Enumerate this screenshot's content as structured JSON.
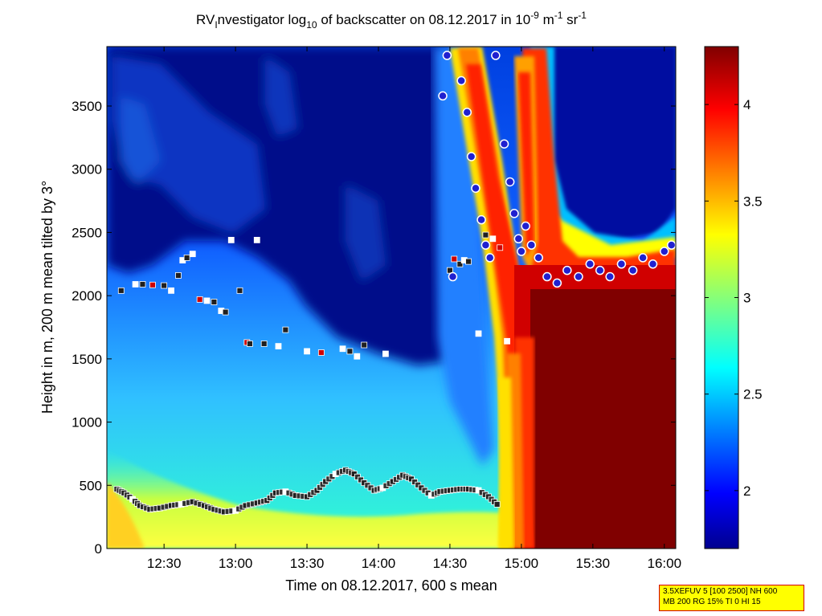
{
  "chart_data": {
    "type": "heatmap",
    "title": {
      "part1": "RV",
      "sub1": "I",
      "part2": "nvestigator log",
      "sub2": "10",
      "part3": " of backscatter on 08.12.2017 in 10",
      "sup1": "-9",
      "part4": " m",
      "sup2": "-1",
      "part5": " sr",
      "sup3": "-1"
    },
    "xlabel": "Time on 08.12.2017, 600 s mean",
    "ylabel": "Height in m, 200 m mean tilted by 3°",
    "x_range_hours": [
      12.1,
      16.08
    ],
    "x_ticks": [
      {
        "value": 12.5,
        "label": "12:30"
      },
      {
        "value": 13.0,
        "label": "13:00"
      },
      {
        "value": 13.5,
        "label": "13:30"
      },
      {
        "value": 14.0,
        "label": "14:00"
      },
      {
        "value": 14.5,
        "label": "14:30"
      },
      {
        "value": 15.0,
        "label": "15:00"
      },
      {
        "value": 15.5,
        "label": "15:30"
      },
      {
        "value": 16.0,
        "label": "16:00"
      }
    ],
    "y_range": [
      0,
      3970
    ],
    "y_ticks": [
      0,
      500,
      1000,
      1500,
      2000,
      2500,
      3000,
      3500
    ],
    "colorbar": {
      "range": [
        1.7,
        4.3
      ],
      "ticks": [
        2,
        2.5,
        3,
        3.5,
        4
      ],
      "colormap": "jet"
    },
    "mixing_layer_height": {
      "name": "lowest layer markers",
      "x": [
        12.17,
        12.22,
        12.28,
        12.33,
        12.4,
        12.47,
        12.55,
        12.62,
        12.7,
        12.78,
        12.85,
        12.92,
        13.0,
        13.07,
        13.15,
        13.22,
        13.28,
        13.35,
        13.42,
        13.5,
        13.57,
        13.63,
        13.7,
        13.77,
        13.83,
        13.9,
        13.97,
        14.03,
        14.1,
        14.17,
        14.23,
        14.3,
        14.37,
        14.43,
        14.5,
        14.57,
        14.63,
        14.7,
        14.77,
        14.83
      ],
      "y": [
        470,
        440,
        390,
        340,
        310,
        320,
        340,
        350,
        370,
        340,
        310,
        290,
        300,
        340,
        360,
        380,
        440,
        450,
        420,
        410,
        460,
        530,
        590,
        620,
        590,
        520,
        460,
        480,
        530,
        580,
        550,
        480,
        420,
        450,
        460,
        470,
        470,
        460,
        410,
        350
      ]
    },
    "layer_markers_upper": {
      "name": "upper layer markers",
      "x": [
        12.2,
        12.3,
        12.35,
        12.42,
        12.5,
        12.55,
        12.6,
        12.63,
        12.66,
        12.7,
        12.75,
        12.8,
        12.85,
        12.9,
        12.93,
        12.97,
        13.03,
        13.08,
        13.1,
        13.15,
        13.2,
        13.3,
        13.35,
        13.5,
        13.6,
        13.75,
        13.8,
        13.85,
        13.9,
        14.05,
        14.5,
        14.53,
        14.57,
        14.6,
        14.63,
        14.7,
        14.75,
        14.8,
        14.85,
        14.9
      ],
      "y": [
        2040,
        2090,
        2090,
        2085,
        2080,
        2040,
        2160,
        2280,
        2300,
        2330,
        1970,
        1960,
        1950,
        1880,
        1870,
        2440,
        2040,
        1630,
        1620,
        2440,
        1620,
        1600,
        1730,
        1560,
        1550,
        1580,
        1560,
        1520,
        1610,
        1540,
        2200,
        2290,
        2250,
        2280,
        2270,
        1700,
        2480,
        2450,
        2380,
        1640
      ]
    },
    "cloud_markers": {
      "name": "cloud markers",
      "x": [
        14.45,
        14.48,
        14.52,
        14.58,
        14.62,
        14.65,
        14.68,
        14.72,
        14.75,
        14.78,
        14.82,
        14.88,
        14.92,
        14.95,
        14.98,
        15.0,
        15.03,
        15.07,
        15.12,
        15.18,
        15.25,
        15.32,
        15.4,
        15.48,
        15.55,
        15.62,
        15.7,
        15.78,
        15.85,
        15.92,
        16.0,
        16.05
      ],
      "y": [
        3580,
        3900,
        2150,
        3700,
        3450,
        3100,
        2850,
        2600,
        2400,
        2300,
        3900,
        3200,
        2900,
        2650,
        2450,
        2350,
        2550,
        2400,
        2300,
        2150,
        2100,
        2200,
        2150,
        2250,
        2200,
        2150,
        2250,
        2200,
        2300,
        2250,
        2350,
        2400
      ]
    }
  },
  "info_box": {
    "line1": "3.5XEFUV 5 [100 2500] NH 600",
    "line2": "MB 200 RG 15% TI 0 HI 15",
    "background": "#ffff00",
    "border": "#d40000"
  }
}
